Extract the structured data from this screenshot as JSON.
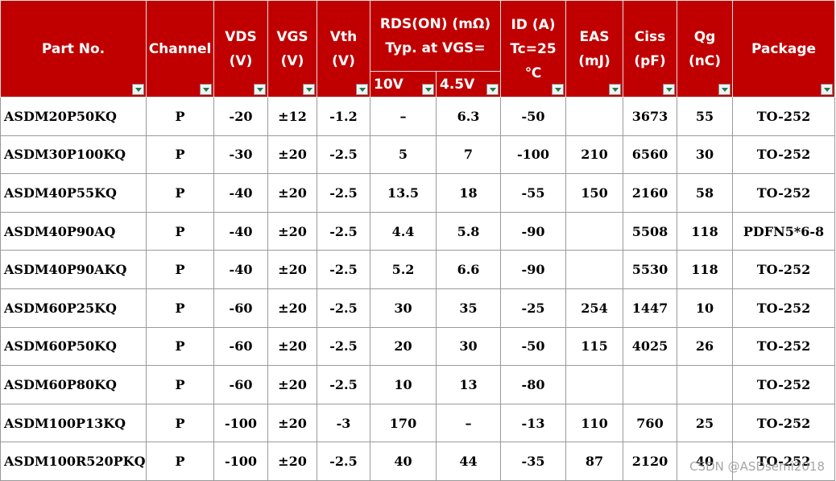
{
  "table": {
    "header": [
      "Part No.",
      "Channel",
      "VDS (V)",
      "VGS (V)",
      "Vth (V)",
      "RDS(ON) (mΩ) Typ. at VGS=",
      "ID (A) Tc=25 ℃",
      "EAS (mJ)",
      "Ciss (pF)",
      "Qg (nC)",
      "Package"
    ],
    "subheader": [
      "10V",
      "4.5V"
    ],
    "rows": [
      [
        "ASDM20P50KQ",
        "P",
        "-20",
        "±12",
        "-1.2",
        "–",
        "6.3",
        "-50",
        null,
        "3673",
        "55",
        "TO-252"
      ],
      [
        "ASDM30P100KQ",
        "P",
        "-30",
        "±20",
        "-2.5",
        "5",
        "7",
        "-100",
        "210",
        "6560",
        "30",
        "TO-252"
      ],
      [
        "ASDM40P55KQ",
        "P",
        "-40",
        "±20",
        "-2.5",
        "13.5",
        "18",
        "-55",
        "150",
        "2160",
        "58",
        "TO-252"
      ],
      [
        "ASDM40P90AQ",
        "P",
        "-40",
        "±20",
        "-2.5",
        "4.4",
        "5.8",
        "-90",
        null,
        "5508",
        "118",
        "PDFN5*6-8"
      ],
      [
        "ASDM40P90AKQ",
        "P",
        "-40",
        "±20",
        "-2.5",
        "5.2",
        "6.6",
        "-90",
        null,
        "5530",
        "118",
        "TO-252"
      ],
      [
        "ASDM60P25KQ",
        "P",
        "-60",
        "±20",
        "-2.5",
        "30",
        "35",
        "-25",
        "254",
        "1447",
        "10",
        "TO-252"
      ],
      [
        "ASDM60P50KQ",
        "P",
        "-60",
        "±20",
        "-2.5",
        "20",
        "30",
        "-50",
        "115",
        "4025",
        "26",
        "TO-252"
      ],
      [
        "ASDM60P80KQ",
        "P",
        "-60",
        "±20",
        "-2.5",
        "10",
        "13",
        "-80",
        null,
        null,
        null,
        "TO-252"
      ],
      [
        "ASDM100P13KQ",
        "P",
        "-100",
        "±20",
        "-3",
        "170",
        "–",
        "-13",
        "110",
        "760",
        "25",
        "TO-252"
      ],
      [
        "ASDM100R520PKQ",
        "P",
        "-100",
        "±20",
        "-2.5",
        "40",
        "44",
        "-35",
        "87",
        "2120",
        "40",
        "TO-252"
      ]
    ]
  },
  "watermark": "CSDN @ASDsemi2018"
}
